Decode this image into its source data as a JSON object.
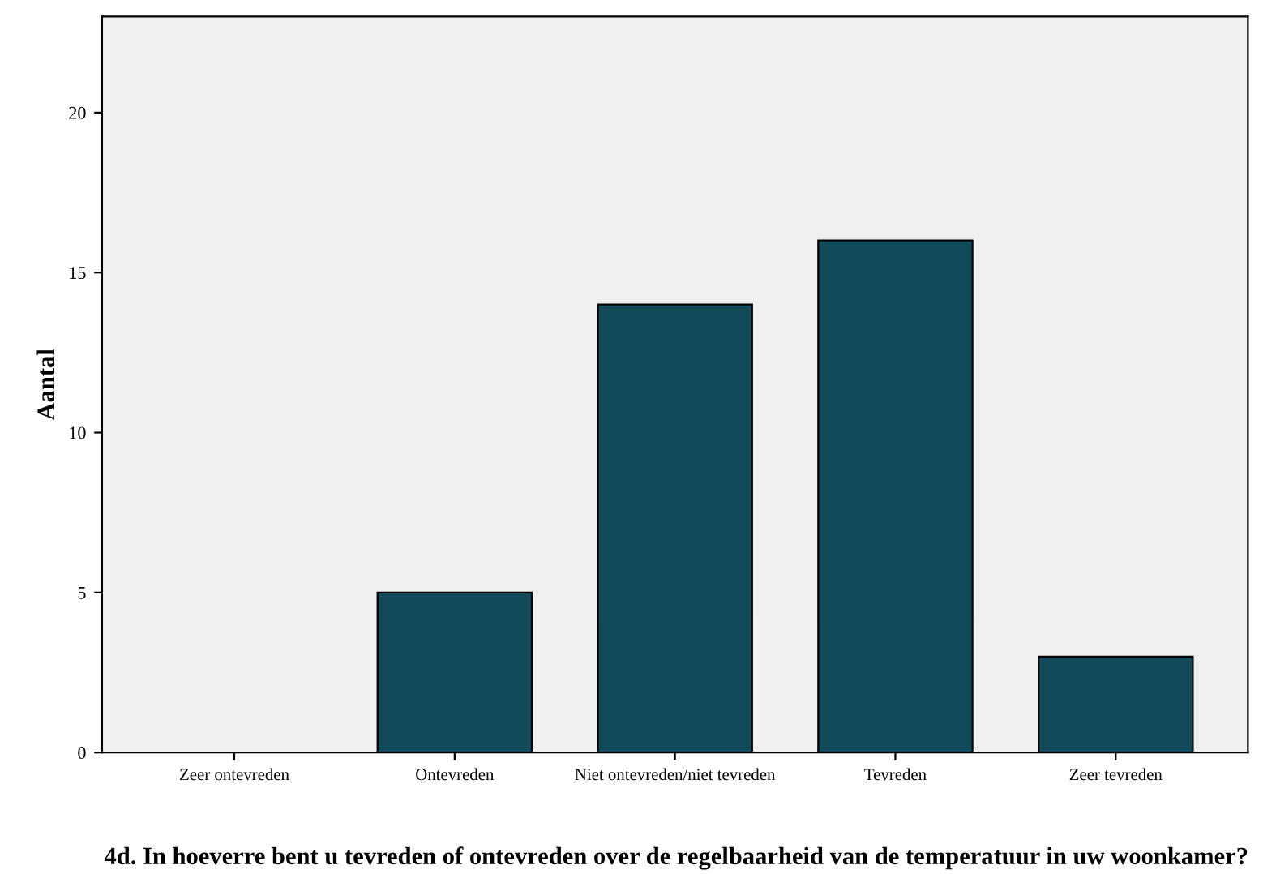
{
  "chart_data": {
    "type": "bar",
    "categories": [
      "Zeer ontevreden",
      "Ontevreden",
      "Niet ontevreden/niet tevreden",
      "Tevreden",
      "Zeer tevreden"
    ],
    "values": [
      0,
      5,
      14,
      16,
      3
    ],
    "color": "#134a5a",
    "xlabel": "4d. In hoeverre bent u tevreden of ontevreden over de regelbaarheid van de temperatuur in uw woonkamer?",
    "ylabel": "Aantal",
    "ylim": [
      0,
      23
    ],
    "yticks": [
      0,
      5,
      10,
      15,
      20
    ],
    "grid": false
  }
}
